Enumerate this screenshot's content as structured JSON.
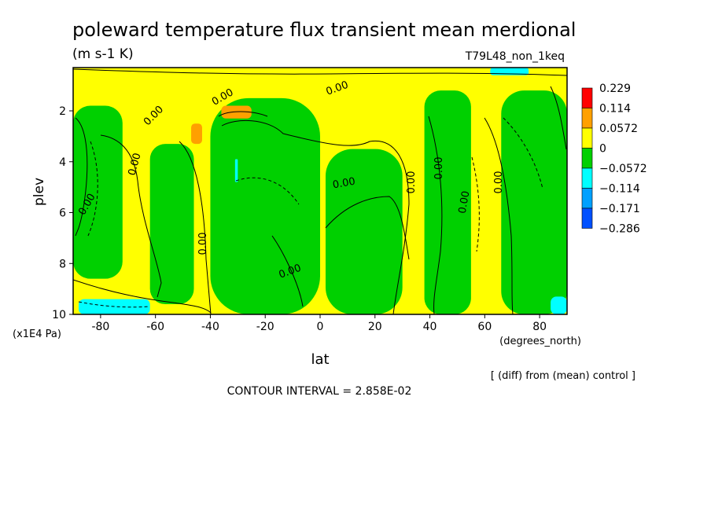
{
  "chart_data": {
    "type": "heatmap",
    "title": "poleward temperature flux transient mean merdional",
    "units": "(m s-1 K)",
    "run_label": "T79L48_non_1keq",
    "xlabel": "lat",
    "x_units": "(degrees_north)",
    "ylabel": "plev",
    "y_units": "(x1E4 Pa)",
    "xlim": [
      -90,
      90
    ],
    "ylim": [
      10,
      0.3
    ],
    "y_inverted": true,
    "x_ticks": [
      -80,
      -60,
      -40,
      -20,
      0,
      20,
      40,
      60,
      80
    ],
    "y_ticks": [
      2,
      4,
      6,
      8,
      10
    ],
    "contour_interval_text": "CONTOUR INTERVAL = 2.858E-02",
    "footnote": "[ (diff) from (mean) control ]",
    "contour_labels": [
      "0.00",
      "0.00",
      "0.00",
      "0.00",
      "0.00",
      "0.00",
      "0.00",
      "0.00",
      "0.00",
      "0.00",
      "0.00",
      "0.00"
    ],
    "colorbar": {
      "levels": [
        "0.229",
        "0.114",
        "0.0572",
        "0",
        "−0.0572",
        "−0.114",
        "−0.171",
        "−0.286"
      ],
      "colors": [
        "#ff0000",
        "#ffa000",
        "#ffff00",
        "#00d000",
        "#00ffff",
        "#00a0ff",
        "#0050ff"
      ]
    },
    "regions": [
      {
        "value_class": "0 to 0.0572",
        "color": "#ffff00",
        "lon": [
          -90,
          90
        ],
        "plev": [
          0.3,
          10
        ]
      },
      {
        "value_class": "-0.0572 to 0",
        "color": "#00d000",
        "lon": [
          -90,
          -72
        ],
        "plev": [
          1.8,
          8.6
        ]
      },
      {
        "value_class": "-0.0572 to 0",
        "color": "#00d000",
        "lon": [
          -62,
          -46
        ],
        "plev": [
          3.3,
          9.6
        ]
      },
      {
        "value_class": "-0.0572 to 0",
        "color": "#00d000",
        "lon": [
          -40,
          0
        ],
        "plev": [
          1.5,
          10
        ]
      },
      {
        "value_class": "-0.0572 to 0",
        "color": "#00d000",
        "lon": [
          2,
          30
        ],
        "plev": [
          3.5,
          10
        ]
      },
      {
        "value_class": "-0.0572 to 0",
        "color": "#00d000",
        "lon": [
          38,
          55
        ],
        "plev": [
          1.2,
          10
        ]
      },
      {
        "value_class": "-0.0572 to 0",
        "color": "#00d000",
        "lon": [
          66,
          90
        ],
        "plev": [
          1.2,
          10
        ]
      },
      {
        "value_class": "0.0572 to 0.114",
        "color": "#ffa000",
        "lon": [
          -36,
          -25
        ],
        "plev": [
          1.8,
          2.3
        ]
      },
      {
        "value_class": "0.0572 to 0.114",
        "color": "#ffa000",
        "lon": [
          -47,
          -43
        ],
        "plev": [
          2.5,
          3.3
        ]
      },
      {
        "value_class": "-0.114 to -0.0572",
        "color": "#00ffff",
        "lon": [
          -88,
          -62
        ],
        "plev": [
          9.4,
          10
        ]
      },
      {
        "value_class": "-0.114 to -0.0572",
        "color": "#00ffff",
        "lon": [
          62,
          76
        ],
        "plev": [
          0.3,
          0.6
        ]
      },
      {
        "value_class": "-0.114 to -0.0572",
        "color": "#00ffff",
        "lon": [
          84,
          90
        ],
        "plev": [
          9.3,
          10
        ]
      },
      {
        "value_class": "-0.114 to -0.0572",
        "color": "#00ffff",
        "lon": [
          -31,
          -30
        ],
        "plev": [
          3.9,
          4.8
        ]
      }
    ]
  }
}
